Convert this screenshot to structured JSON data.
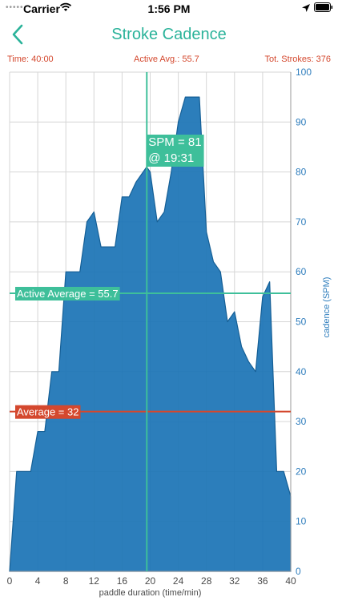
{
  "status_bar": {
    "carrier": "Carrier",
    "time": "1:56 PM",
    "signal_icon": "signal-dots-icon",
    "wifi_icon": "wifi-icon",
    "location_icon": "location-arrow-icon",
    "battery_icon": "battery-icon"
  },
  "nav": {
    "title": "Stroke Cadence",
    "back_icon": "chevron-left-icon"
  },
  "stats": {
    "time": "Time: 40:00",
    "active_avg": "Active Avg.: 55.7",
    "total_strokes": "Tot. Strokes: 376"
  },
  "colors": {
    "accent": "#2bb39a",
    "stat_text": "#d4482e",
    "area_fill": "#1a73b5",
    "axis_text": "#2e7dbd",
    "average_line": "#d4482e",
    "active_average_line": "#3ebf9a"
  },
  "chart_data": {
    "type": "area",
    "xlabel": "paddle duration (time/min)",
    "ylabel": "cadence (SPM)",
    "xlim": [
      0,
      40
    ],
    "ylim": [
      0,
      100
    ],
    "x_ticks": [
      0,
      4,
      8,
      12,
      16,
      20,
      24,
      28,
      32,
      36,
      40
    ],
    "y_ticks": [
      0,
      10,
      20,
      30,
      40,
      50,
      60,
      70,
      80,
      90,
      100
    ],
    "x": [
      0,
      1,
      3,
      4,
      5,
      6,
      7,
      8,
      9,
      10,
      11,
      12,
      13,
      14,
      15,
      16,
      17,
      18,
      19,
      19.5,
      20,
      21,
      22,
      23,
      24,
      25,
      26,
      27,
      28,
      29,
      30,
      31,
      32,
      33,
      34,
      35,
      36,
      37,
      38,
      39,
      40
    ],
    "y": [
      0,
      20,
      20,
      28,
      28,
      40,
      40,
      60,
      60,
      60,
      70,
      72,
      65,
      65,
      65,
      75,
      75,
      78,
      80,
      81,
      80,
      70,
      72,
      80,
      90,
      95,
      95,
      95,
      68,
      62,
      60,
      50,
      52,
      45,
      42,
      40,
      55,
      58,
      20,
      20,
      15
    ],
    "reference_lines": [
      {
        "label": "Active Average = 55.7",
        "value": 55.7
      },
      {
        "label": "Average = 32",
        "value": 32
      }
    ],
    "cursor": {
      "x": 19.52,
      "label_line1": "SPM = 81",
      "label_line2": "@ 19:31"
    },
    "grid": true
  }
}
